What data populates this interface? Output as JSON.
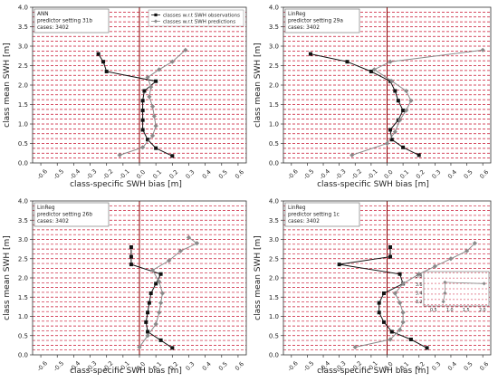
{
  "chart_data": [
    {
      "type": "line",
      "xlabel": "class-specific SWH bias [m]",
      "ylabel": "class mean SWH [m]",
      "xlim": [
        -0.65,
        0.65
      ],
      "ylim": [
        0.0,
        4.0
      ],
      "x_ticks": [
        "-0.6",
        "-0.5",
        "-0.4",
        "-0.3",
        "-0.2",
        "-0.1",
        "0.0",
        "0.1",
        "0.2",
        "0.3",
        "0.4",
        "0.5",
        "0.6"
      ],
      "y_ticks": [
        "0.0",
        "0.5",
        "1.0",
        "1.5",
        "2.0",
        "2.5",
        "3.0",
        "3.5",
        "4.0"
      ],
      "grid": "horizontal dashed red at class bounds",
      "annotation": [
        "ANN",
        "predictor setting  31b",
        "cases: 3402"
      ],
      "legend": [
        "classes w.r.t SWH observations",
        "classes w.r.t SWH predictions"
      ],
      "legend_position": "top-right",
      "series": [
        {
          "name": "classes w.r.t SWH observations",
          "color": "#111111",
          "marker": "square",
          "points": [
            [
              0.2,
              0.18
            ],
            [
              0.1,
              0.38
            ],
            [
              0.05,
              0.6
            ],
            [
              0.02,
              0.85
            ],
            [
              0.02,
              1.1
            ],
            [
              0.02,
              1.35
            ],
            [
              0.02,
              1.6
            ],
            [
              0.03,
              1.85
            ],
            [
              0.1,
              2.1
            ],
            [
              -0.2,
              2.35
            ],
            [
              -0.22,
              2.6
            ],
            [
              -0.25,
              2.8
            ]
          ]
        },
        {
          "name": "classes w.r.t SWH predictions",
          "color": "#8a8a8a",
          "marker": "diamond",
          "points": [
            [
              -0.12,
              0.2
            ],
            [
              0.02,
              0.4
            ],
            [
              0.08,
              0.7
            ],
            [
              0.1,
              0.95
            ],
            [
              0.09,
              1.2
            ],
            [
              0.08,
              1.45
            ],
            [
              0.06,
              1.7
            ],
            [
              0.07,
              1.95
            ],
            [
              0.05,
              2.2
            ],
            [
              0.12,
              2.4
            ],
            [
              0.2,
              2.6
            ],
            [
              0.28,
              2.9
            ]
          ]
        }
      ]
    },
    {
      "type": "line",
      "xlabel": "class-specific SWH bias [m]",
      "ylabel": "class mean SWH [m]",
      "xlim": [
        -0.65,
        0.65
      ],
      "ylim": [
        0.0,
        4.0
      ],
      "x_ticks": [
        "-0.6",
        "-0.5",
        "-0.4",
        "-0.3",
        "-0.2",
        "-0.1",
        "0.0",
        "0.1",
        "0.2",
        "0.3",
        "0.4",
        "0.5",
        "0.6"
      ],
      "y_ticks": [
        "0.0",
        "0.5",
        "1.0",
        "1.5",
        "2.0",
        "2.5",
        "3.0",
        "3.5",
        "4.0"
      ],
      "annotation": [
        "LinReg",
        "predictor setting  29a",
        "cases: 3402"
      ],
      "series": [
        {
          "name": "classes w.r.t SWH observations",
          "color": "#111111",
          "marker": "square",
          "points": [
            [
              0.2,
              0.2
            ],
            [
              0.1,
              0.4
            ],
            [
              0.03,
              0.6
            ],
            [
              0.02,
              0.85
            ],
            [
              0.07,
              1.1
            ],
            [
              0.1,
              1.35
            ],
            [
              0.07,
              1.6
            ],
            [
              0.05,
              1.85
            ],
            [
              0.02,
              2.1
            ],
            [
              -0.1,
              2.35
            ],
            [
              -0.25,
              2.6
            ],
            [
              -0.48,
              2.8
            ]
          ]
        },
        {
          "name": "classes w.r.t SWH predictions",
          "color": "#8a8a8a",
          "marker": "diamond",
          "points": [
            [
              -0.22,
              0.2
            ],
            [
              0.0,
              0.5
            ],
            [
              0.05,
              0.8
            ],
            [
              0.08,
              1.1
            ],
            [
              0.12,
              1.35
            ],
            [
              0.15,
              1.6
            ],
            [
              0.12,
              1.85
            ],
            [
              0.03,
              2.1
            ],
            [
              -0.08,
              2.4
            ],
            [
              0.02,
              2.6
            ],
            [
              0.6,
              2.9
            ]
          ]
        }
      ]
    },
    {
      "type": "line",
      "xlabel": "class-specific SWH bias [m]",
      "ylabel": "class mean SWH [m]",
      "xlim": [
        -0.65,
        0.65
      ],
      "ylim": [
        0.0,
        4.0
      ],
      "x_ticks": [
        "-0.6",
        "-0.5",
        "-0.4",
        "-0.3",
        "-0.2",
        "-0.1",
        "0.0",
        "0.1",
        "0.2",
        "0.3",
        "0.4",
        "0.5",
        "0.6"
      ],
      "y_ticks": [
        "0.0",
        "0.5",
        "1.0",
        "1.5",
        "2.0",
        "2.5",
        "3.0",
        "3.5",
        "4.0"
      ],
      "annotation": [
        "LinReg",
        "predictor setting  26b",
        "cases: 3402"
      ],
      "series": [
        {
          "name": "classes w.r.t SWH observations",
          "color": "#111111",
          "marker": "square",
          "points": [
            [
              0.2,
              0.18
            ],
            [
              0.13,
              0.38
            ],
            [
              0.05,
              0.6
            ],
            [
              0.04,
              0.85
            ],
            [
              0.05,
              1.1
            ],
            [
              0.06,
              1.35
            ],
            [
              0.07,
              1.6
            ],
            [
              0.1,
              1.85
            ],
            [
              0.13,
              2.1
            ],
            [
              -0.05,
              2.35
            ],
            [
              -0.05,
              2.55
            ],
            [
              -0.05,
              2.8
            ]
          ]
        },
        {
          "name": "classes w.r.t SWH predictions",
          "color": "#8a8a8a",
          "marker": "diamond",
          "points": [
            [
              0.0,
              0.2
            ],
            [
              0.05,
              0.5
            ],
            [
              0.1,
              0.8
            ],
            [
              0.12,
              1.1
            ],
            [
              0.13,
              1.35
            ],
            [
              0.14,
              1.6
            ],
            [
              0.12,
              1.9
            ],
            [
              0.08,
              2.2
            ],
            [
              0.18,
              2.45
            ],
            [
              0.25,
              2.7
            ],
            [
              0.35,
              2.9
            ],
            [
              0.3,
              3.05
            ]
          ]
        }
      ]
    },
    {
      "type": "line",
      "xlabel": "class-specific SWH bias [m]",
      "ylabel": "class mean SWH [m]",
      "xlim": [
        -0.65,
        0.65
      ],
      "ylim": [
        0.0,
        4.0
      ],
      "x_ticks": [
        "-0.6",
        "-0.5",
        "-0.4",
        "-0.3",
        "-0.2",
        "-0.1",
        "0.0",
        "0.1",
        "0.2",
        "0.3",
        "0.4",
        "0.5",
        "0.6"
      ],
      "y_ticks": [
        "0.0",
        "0.5",
        "1.0",
        "1.5",
        "2.0",
        "2.5",
        "3.0",
        "3.5",
        "4.0"
      ],
      "annotation": [
        "LinReg",
        "predictor setting  1c",
        "cases: 3402"
      ],
      "inset": {
        "x_ticks": [
          "0.5",
          "1.0",
          "1.5",
          "2.0"
        ],
        "y_ticks": [
          "3.2",
          "3.4",
          "3.6",
          "3.8"
        ],
        "xlim": [
          0.2,
          2.2
        ],
        "ylim": [
          3.1,
          3.9
        ],
        "series": [
          {
            "name": "classes w.r.t SWH predictions",
            "color": "#8a8a8a",
            "marker": "diamond",
            "points": [
              [
                0.8,
                3.2
              ],
              [
                0.85,
                3.4
              ],
              [
                0.85,
                3.65
              ],
              [
                2.05,
                3.62
              ]
            ]
          }
        ]
      },
      "series": [
        {
          "name": "classes w.r.t SWH observations",
          "color": "#111111",
          "marker": "square",
          "points": [
            [
              0.25,
              0.18
            ],
            [
              0.15,
              0.4
            ],
            [
              0.03,
              0.6
            ],
            [
              -0.02,
              0.85
            ],
            [
              -0.05,
              1.1
            ],
            [
              -0.05,
              1.35
            ],
            [
              -0.02,
              1.6
            ],
            [
              0.1,
              1.85
            ],
            [
              0.08,
              2.1
            ],
            [
              -0.3,
              2.35
            ],
            [
              0.02,
              2.55
            ],
            [
              0.02,
              2.8
            ]
          ]
        },
        {
          "name": "classes w.r.t SWH predictions",
          "color": "#8a8a8a",
          "marker": "diamond",
          "points": [
            [
              -0.2,
              0.2
            ],
            [
              0.02,
              0.4
            ],
            [
              0.08,
              0.65
            ],
            [
              0.1,
              0.85
            ],
            [
              0.1,
              1.1
            ],
            [
              0.08,
              1.35
            ],
            [
              0.05,
              1.6
            ],
            [
              0.1,
              1.85
            ],
            [
              0.2,
              2.1
            ],
            [
              0.3,
              2.3
            ],
            [
              0.4,
              2.5
            ],
            [
              0.5,
              2.7
            ],
            [
              0.55,
              2.9
            ]
          ]
        }
      ]
    }
  ]
}
